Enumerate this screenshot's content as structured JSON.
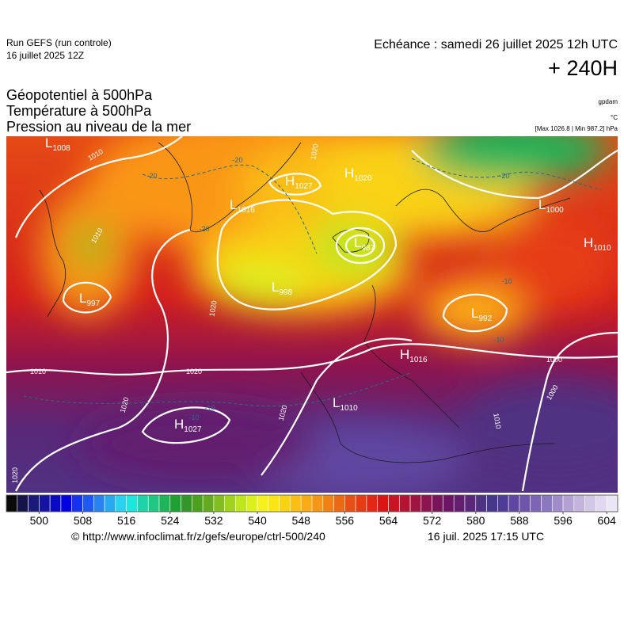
{
  "header": {
    "run": "Run GEFS (run controle)",
    "run_date": "16 juillet 2025 12Z",
    "valid_time": "Echéance : samedi 26 juillet 2025 12h UTC",
    "lead": "+ 240H",
    "fields": [
      "Géopotentiel à 500hPa",
      "Température à 500hPa",
      "Pression au niveau de la mer"
    ],
    "units": [
      "gpdam",
      "°C",
      "[Max 1026.8 | Min 987.2] hPa"
    ]
  },
  "map": {
    "centers": [
      {
        "letter": "L",
        "value": 1008
      },
      {
        "letter": "H",
        "value": 1027
      },
      {
        "letter": "H",
        "value": 1020
      },
      {
        "letter": "L",
        "value": 1016
      },
      {
        "letter": "L",
        "value": 987
      },
      {
        "letter": "L",
        "value": 998
      },
      {
        "letter": "L",
        "value": 997
      },
      {
        "letter": "L",
        "value": 1000
      },
      {
        "letter": "H",
        "value": 1010
      },
      {
        "letter": "L",
        "value": 992
      },
      {
        "letter": "H",
        "value": 1016
      },
      {
        "letter": "L",
        "value": 1010
      },
      {
        "letter": "H",
        "value": 1027
      }
    ],
    "isobar_labels": [
      1010,
      1020,
      1010,
      1020,
      1010,
      1020,
      1020,
      1020,
      1000,
      1000,
      1020,
      1010
    ],
    "temperature_labels": [
      -20,
      -20,
      -20,
      -20,
      -10,
      -10,
      -10,
      -10
    ]
  },
  "colorbar": {
    "range": [
      494,
      606
    ],
    "ticks": [
      500,
      508,
      516,
      524,
      532,
      540,
      548,
      556,
      564,
      572,
      580,
      588,
      596,
      604
    ],
    "colors": [
      "#0a0a0a",
      "#14144b",
      "#1a1a78",
      "#1414a0",
      "#0a0ac3",
      "#0000e1",
      "#1432f0",
      "#1e5af0",
      "#2882f0",
      "#28aaf0",
      "#28d2f0",
      "#1ee6dc",
      "#1ed2aa",
      "#1ec882",
      "#1eb45a",
      "#1ea032",
      "#329628",
      "#4ba01e",
      "#64aa1e",
      "#82be1e",
      "#a0d21e",
      "#bee61e",
      "#dcf01e",
      "#f5f01e",
      "#fae614",
      "#fad214",
      "#fabe14",
      "#faaa14",
      "#f59614",
      "#f08214",
      "#eb6914",
      "#e65014",
      "#e63c14",
      "#e12814",
      "#dc1414",
      "#c81423",
      "#b41432",
      "#a01441",
      "#8c1450",
      "#78145a",
      "#6e1464",
      "#641e6e",
      "#5a2878",
      "#503282",
      "#46378c",
      "#503c96",
      "#5f46a0",
      "#6e55aa",
      "#7d64b4",
      "#8c78be",
      "#a08cc8",
      "#b4a0d2",
      "#c3b4dc",
      "#d2c8e6",
      "#e1d7f0",
      "#ebe6f5"
    ]
  },
  "footer": {
    "source": "© http://www.infoclimat.fr/z/gefs/europe/ctrl-500/240",
    "generated": "16 juil. 2025 17:15 UTC"
  }
}
